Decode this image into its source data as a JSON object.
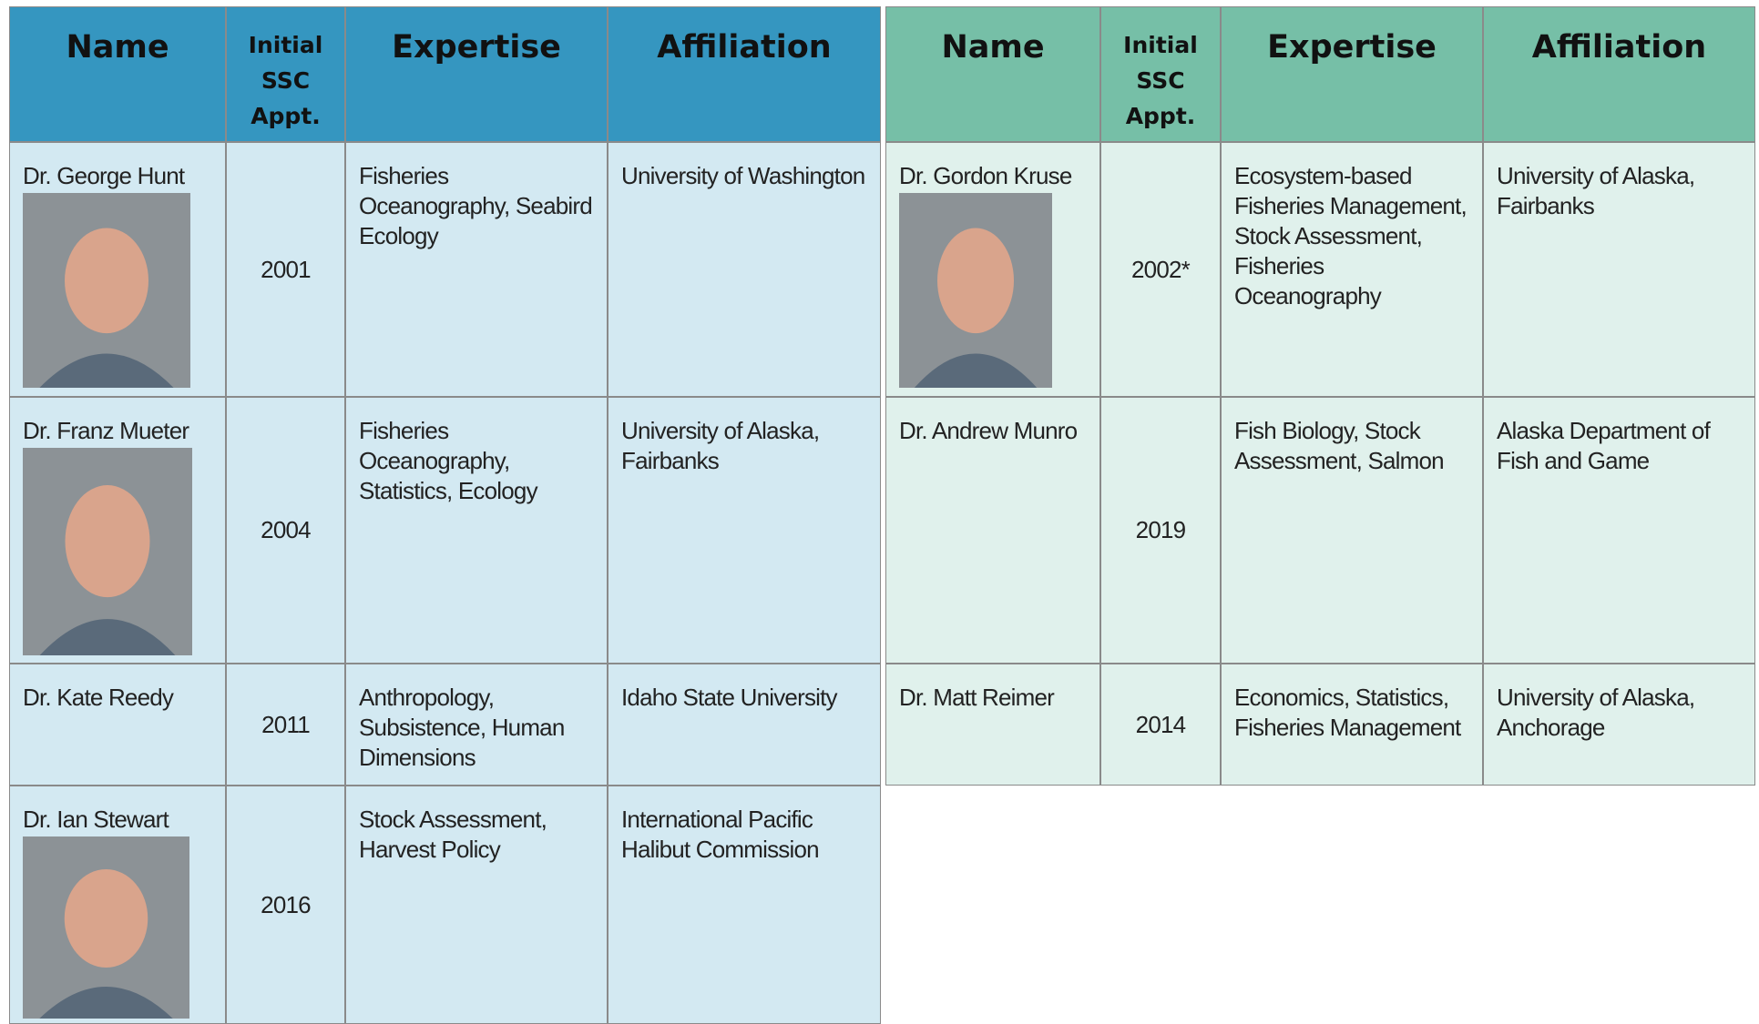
{
  "left_table": {
    "headers": [
      "Name",
      "Initial SSC Appt.",
      "Expertise",
      "Affiliation"
    ],
    "rows": [
      [
        "Dr. George Hunt",
        "2001",
        "Fisheries Oceanography, Seabird Ecology",
        "University of Washington"
      ],
      [
        "Dr. Franz Mueter",
        "2004",
        "Fisheries Oceanography, Statistics, Ecology",
        "University of Alaska, Fairbanks"
      ],
      [
        "Dr. Kate Reedy",
        "2011",
        "Anthropology, Subsistence, Human Dimensions",
        "Idaho State University"
      ],
      [
        "Dr. Ian Stewart",
        "2016",
        "Stock Assessment, Harvest Policy",
        "International Pacific Halibut Commission"
      ]
    ]
  },
  "right_table": {
    "headers": [
      "Name",
      "Initial SSC Appt.",
      "Expertise",
      "Affiliation"
    ],
    "rows": [
      [
        "Dr. Gordon Kruse",
        "2002*",
        "Ecosystem-based Fisheries Management, Stock Assessment, Fisheries Oceanography",
        "University of Alaska, Fairbanks"
      ],
      [
        "Dr. Andrew Munro",
        "2019",
        "Fish Biology, Stock Assessment, Salmon",
        "Alaska Department of Fish and Game"
      ],
      [
        "Dr. Matt Reimer",
        "2014",
        "Economics, Statistics, Fisheries Management",
        "University of Alaska, Anchorage"
      ]
    ]
  }
}
